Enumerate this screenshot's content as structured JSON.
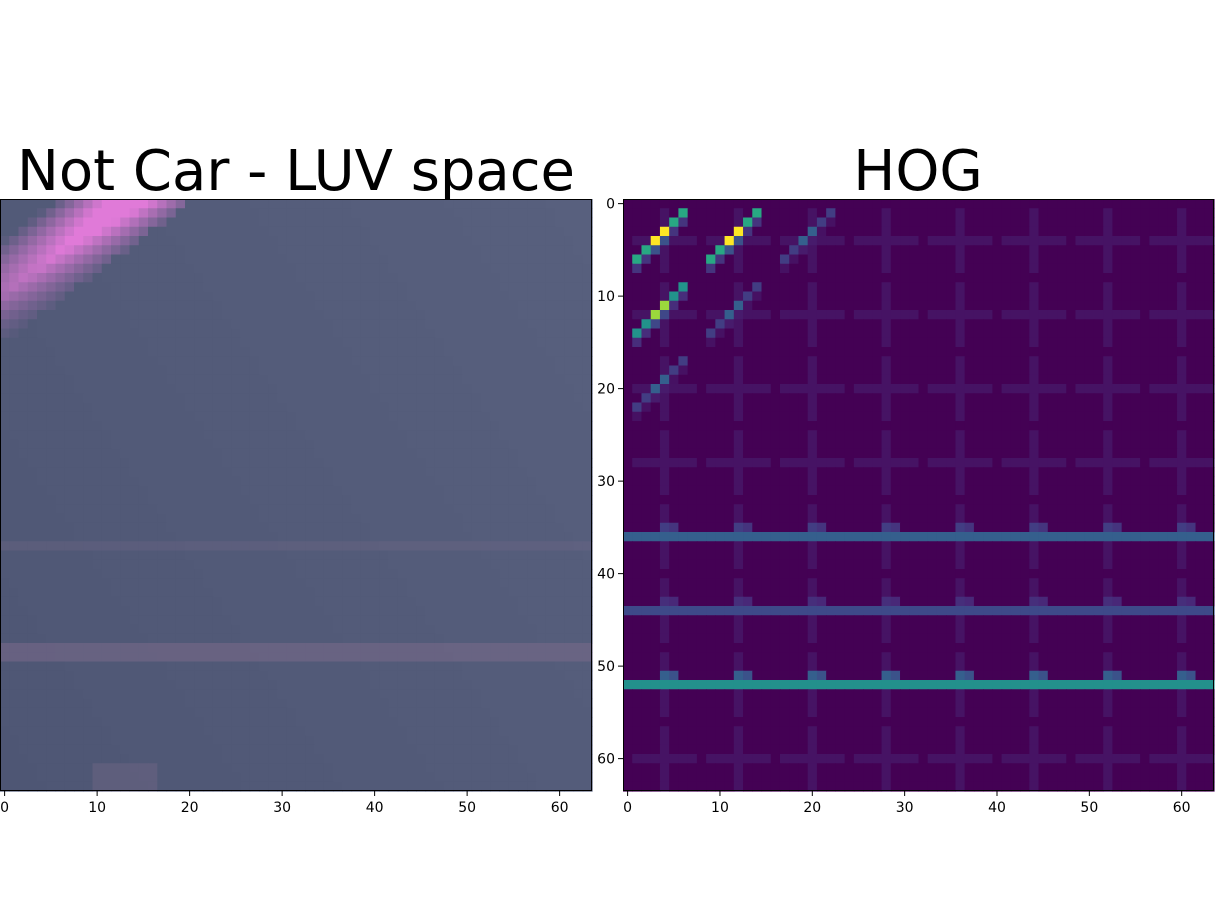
{
  "chart_data": [
    {
      "type": "heatmap",
      "title": "Not Car - LUV space",
      "image_size": [
        64,
        64
      ],
      "x_ticks": [
        0,
        10,
        20,
        30,
        40,
        50,
        60
      ],
      "y_ticks": [],
      "xlim": [
        -0.5,
        63.5
      ],
      "ylim": [
        63.5,
        -0.5
      ],
      "content": "RGB render of 64x64 patch: bluish-grey background with a pink diagonal stripe in the top-left corner and faint horizontal pink bands near rows 37 and 49",
      "colors": {
        "background": "#58607e",
        "stripe": "#e07ad8",
        "band": "#7a6a8a"
      }
    },
    {
      "type": "heatmap",
      "title": "HOG",
      "colormap": "viridis",
      "image_size": [
        64,
        64
      ],
      "x_ticks": [
        0,
        10,
        20,
        30,
        40,
        50,
        60
      ],
      "y_ticks": [
        0,
        10,
        20,
        30,
        40,
        50,
        60
      ],
      "xlim": [
        -0.5,
        63.5
      ],
      "ylim": [
        63.5,
        -0.5
      ],
      "cell_grid": [
        8,
        8
      ],
      "cell_size": 8,
      "strong_cells": [
        {
          "row": 0,
          "col": 0,
          "pattern": "diagonal",
          "value": 1.0
        },
        {
          "row": 0,
          "col": 1,
          "pattern": "diagonal",
          "value": 1.0
        },
        {
          "row": 1,
          "col": 0,
          "pattern": "diagonal",
          "value": 0.85
        },
        {
          "row": 1,
          "col": 1,
          "pattern": "diagonal",
          "value": 0.3
        },
        {
          "row": 0,
          "col": 2,
          "pattern": "diagonal",
          "value": 0.3
        },
        {
          "row": 2,
          "col": 0,
          "pattern": "diagonal",
          "value": 0.3
        }
      ],
      "horizontal_band_rows": [
        {
          "row": 4,
          "value": 0.3
        },
        {
          "row": 5,
          "value": 0.22
        },
        {
          "row": 6,
          "value": 0.5
        }
      ],
      "colors": {
        "low": "#440154",
        "mid": "#21918c",
        "high": "#fde725"
      }
    }
  ]
}
